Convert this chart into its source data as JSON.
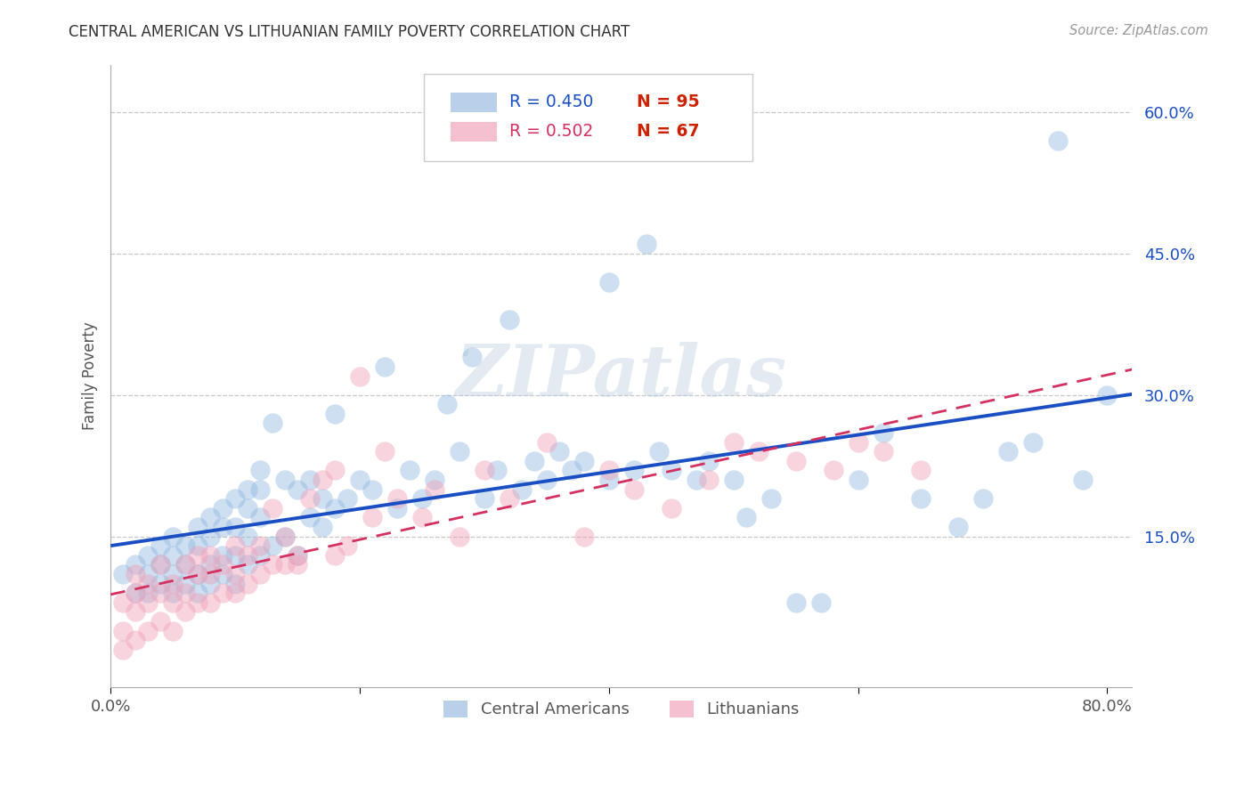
{
  "title": "CENTRAL AMERICAN VS LITHUANIAN FAMILY POVERTY CORRELATION CHART",
  "source": "Source: ZipAtlas.com",
  "ylabel": "Family Poverty",
  "xlim": [
    0.0,
    0.82
  ],
  "ylim": [
    -0.01,
    0.65
  ],
  "xtick_positions": [
    0.0,
    0.2,
    0.4,
    0.6,
    0.8
  ],
  "xticklabels": [
    "0.0%",
    "",
    "",
    "",
    "80.0%"
  ],
  "ytick_positions": [
    0.15,
    0.3,
    0.45,
    0.6
  ],
  "ytick_labels": [
    "15.0%",
    "30.0%",
    "45.0%",
    "60.0%"
  ],
  "background_color": "#ffffff",
  "grid_color": "#c8c8c8",
  "blue_scatter_color": "#92b8e0",
  "pink_scatter_color": "#f0a0b8",
  "blue_line_color": "#1a4fc4",
  "pink_line_color": "#d43060",
  "legend_blue_R": "R = 0.450",
  "legend_blue_N": "N = 95",
  "legend_pink_R": "R = 0.502",
  "legend_pink_N": "N = 67",
  "watermark": "ZIPatlas",
  "ca_x": [
    0.01,
    0.02,
    0.02,
    0.03,
    0.03,
    0.03,
    0.04,
    0.04,
    0.04,
    0.05,
    0.05,
    0.05,
    0.05,
    0.06,
    0.06,
    0.06,
    0.07,
    0.07,
    0.07,
    0.07,
    0.08,
    0.08,
    0.08,
    0.08,
    0.09,
    0.09,
    0.09,
    0.09,
    0.1,
    0.1,
    0.1,
    0.1,
    0.11,
    0.11,
    0.11,
    0.11,
    0.12,
    0.12,
    0.12,
    0.12,
    0.13,
    0.13,
    0.14,
    0.14,
    0.15,
    0.15,
    0.16,
    0.16,
    0.17,
    0.17,
    0.18,
    0.18,
    0.19,
    0.2,
    0.21,
    0.22,
    0.23,
    0.24,
    0.25,
    0.26,
    0.27,
    0.28,
    0.29,
    0.3,
    0.31,
    0.32,
    0.33,
    0.34,
    0.35,
    0.36,
    0.37,
    0.38,
    0.4,
    0.4,
    0.42,
    0.43,
    0.44,
    0.45,
    0.47,
    0.48,
    0.5,
    0.51,
    0.53,
    0.55,
    0.57,
    0.6,
    0.62,
    0.65,
    0.68,
    0.7,
    0.72,
    0.74,
    0.76,
    0.78,
    0.8
  ],
  "ca_y": [
    0.11,
    0.09,
    0.12,
    0.09,
    0.11,
    0.13,
    0.1,
    0.12,
    0.14,
    0.09,
    0.11,
    0.13,
    0.15,
    0.1,
    0.12,
    0.14,
    0.09,
    0.11,
    0.14,
    0.16,
    0.1,
    0.12,
    0.15,
    0.17,
    0.11,
    0.13,
    0.16,
    0.18,
    0.1,
    0.13,
    0.16,
    0.19,
    0.12,
    0.15,
    0.18,
    0.2,
    0.13,
    0.17,
    0.2,
    0.22,
    0.14,
    0.27,
    0.15,
    0.21,
    0.13,
    0.2,
    0.17,
    0.21,
    0.16,
    0.19,
    0.18,
    0.28,
    0.19,
    0.21,
    0.2,
    0.33,
    0.18,
    0.22,
    0.19,
    0.21,
    0.29,
    0.24,
    0.34,
    0.19,
    0.22,
    0.38,
    0.2,
    0.23,
    0.21,
    0.24,
    0.22,
    0.23,
    0.21,
    0.42,
    0.22,
    0.46,
    0.24,
    0.22,
    0.21,
    0.23,
    0.21,
    0.17,
    0.19,
    0.08,
    0.08,
    0.21,
    0.26,
    0.19,
    0.16,
    0.19,
    0.24,
    0.25,
    0.57,
    0.21,
    0.3
  ],
  "lith_x": [
    0.01,
    0.01,
    0.01,
    0.02,
    0.02,
    0.02,
    0.02,
    0.03,
    0.03,
    0.03,
    0.04,
    0.04,
    0.04,
    0.05,
    0.05,
    0.05,
    0.06,
    0.06,
    0.06,
    0.07,
    0.07,
    0.07,
    0.08,
    0.08,
    0.08,
    0.09,
    0.09,
    0.1,
    0.1,
    0.1,
    0.11,
    0.11,
    0.12,
    0.12,
    0.13,
    0.13,
    0.14,
    0.14,
    0.15,
    0.15,
    0.16,
    0.17,
    0.18,
    0.18,
    0.19,
    0.2,
    0.21,
    0.22,
    0.23,
    0.25,
    0.26,
    0.28,
    0.3,
    0.32,
    0.35,
    0.38,
    0.4,
    0.42,
    0.45,
    0.48,
    0.5,
    0.52,
    0.55,
    0.58,
    0.6,
    0.62,
    0.65
  ],
  "lith_y": [
    0.03,
    0.05,
    0.08,
    0.04,
    0.07,
    0.09,
    0.11,
    0.05,
    0.08,
    0.1,
    0.06,
    0.09,
    0.12,
    0.05,
    0.08,
    0.1,
    0.07,
    0.09,
    0.12,
    0.08,
    0.11,
    0.13,
    0.08,
    0.11,
    0.13,
    0.09,
    0.12,
    0.09,
    0.11,
    0.14,
    0.1,
    0.13,
    0.11,
    0.14,
    0.12,
    0.18,
    0.12,
    0.15,
    0.13,
    0.12,
    0.19,
    0.21,
    0.13,
    0.22,
    0.14,
    0.32,
    0.17,
    0.24,
    0.19,
    0.17,
    0.2,
    0.15,
    0.22,
    0.19,
    0.25,
    0.15,
    0.22,
    0.2,
    0.18,
    0.21,
    0.25,
    0.24,
    0.23,
    0.22,
    0.25,
    0.24,
    0.22
  ]
}
